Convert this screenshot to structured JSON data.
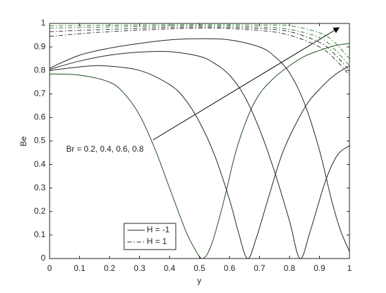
{
  "chart_data": {
    "type": "line",
    "xlabel": "y",
    "ylabel": "Be",
    "xlim": [
      0,
      1
    ],
    "ylim": [
      0,
      1
    ],
    "xticks": [
      0,
      0.1,
      0.2,
      0.3,
      0.4,
      0.5,
      0.6,
      0.7,
      0.8,
      0.9,
      1
    ],
    "yticks": [
      0,
      0.1,
      0.2,
      0.3,
      0.4,
      0.5,
      0.6,
      0.7,
      0.8,
      0.9,
      1
    ],
    "grid": false,
    "legend": "bottom-left",
    "annotation": "Br = 0.2, 0.4, 0.6, 0.8",
    "series": [
      {
        "name": "H = -1",
        "dash": "solid",
        "lines": [
          {
            "color": "#1d4d1d",
            "x": [
              0,
              0.1,
              0.2,
              0.25,
              0.3,
              0.35,
              0.4,
              0.45,
              0.48,
              0.51,
              0.54,
              0.58,
              0.62,
              0.66,
              0.7,
              0.75,
              0.8,
              0.85,
              0.9,
              0.95,
              1
            ],
            "values": [
              0.785,
              0.78,
              0.75,
              0.7,
              0.61,
              0.47,
              0.3,
              0.13,
              0.05,
              0,
              0.06,
              0.24,
              0.45,
              0.6,
              0.7,
              0.77,
              0.82,
              0.86,
              0.885,
              0.905,
              0.915
            ]
          },
          {
            "color": "#222222",
            "x": [
              0,
              0.1,
              0.18,
              0.3,
              0.4,
              0.45,
              0.5,
              0.55,
              0.6,
              0.63,
              0.66,
              0.69,
              0.73,
              0.78,
              0.85,
              0.9,
              0.95,
              1
            ],
            "values": [
              0.8,
              0.815,
              0.82,
              0.8,
              0.74,
              0.68,
              0.58,
              0.44,
              0.25,
              0.11,
              0,
              0.09,
              0.26,
              0.46,
              0.64,
              0.72,
              0.78,
              0.82
            ]
          },
          {
            "color": "#222222",
            "x": [
              0,
              0.1,
              0.2,
              0.3,
              0.4,
              0.5,
              0.55,
              0.6,
              0.65,
              0.7,
              0.75,
              0.8,
              0.835,
              0.87,
              0.92,
              0.96,
              1
            ],
            "values": [
              0.805,
              0.84,
              0.865,
              0.878,
              0.88,
              0.86,
              0.83,
              0.78,
              0.69,
              0.55,
              0.37,
              0.16,
              0,
              0.12,
              0.33,
              0.44,
              0.48
            ]
          },
          {
            "color": "#222222",
            "x": [
              0,
              0.1,
              0.2,
              0.3,
              0.4,
              0.5,
              0.6,
              0.7,
              0.75,
              0.8,
              0.85,
              0.9,
              0.94,
              0.97,
              1
            ],
            "values": [
              0.81,
              0.865,
              0.895,
              0.915,
              0.93,
              0.935,
              0.93,
              0.9,
              0.86,
              0.79,
              0.66,
              0.46,
              0.25,
              0.12,
              0.03
            ]
          }
        ]
      },
      {
        "name": "H = 1",
        "dash": "dashdot",
        "lines": [
          {
            "color": "#2e7d2e",
            "x": [
              0,
              0.2,
              0.5,
              0.7,
              0.8,
              0.9,
              0.95,
              1
            ],
            "values": [
              0.99,
              0.992,
              0.995,
              0.993,
              0.99,
              0.96,
              0.92,
              0.85
            ]
          },
          {
            "color": "#2e7d2e",
            "x": [
              0,
              0.2,
              0.5,
              0.7,
              0.8,
              0.9,
              0.95,
              1
            ],
            "values": [
              0.98,
              0.985,
              0.99,
              0.985,
              0.975,
              0.94,
              0.89,
              0.82
            ]
          },
          {
            "color": "#333333",
            "x": [
              0,
              0.2,
              0.5,
              0.7,
              0.8,
              0.9,
              0.95,
              1
            ],
            "values": [
              0.965,
              0.975,
              0.985,
              0.978,
              0.965,
              0.92,
              0.87,
              0.8
            ]
          },
          {
            "color": "#333333",
            "x": [
              0,
              0.2,
              0.5,
              0.7,
              0.8,
              0.9,
              0.95,
              1
            ],
            "values": [
              0.945,
              0.965,
              0.98,
              0.97,
              0.95,
              0.9,
              0.85,
              0.78
            ]
          }
        ]
      }
    ]
  }
}
